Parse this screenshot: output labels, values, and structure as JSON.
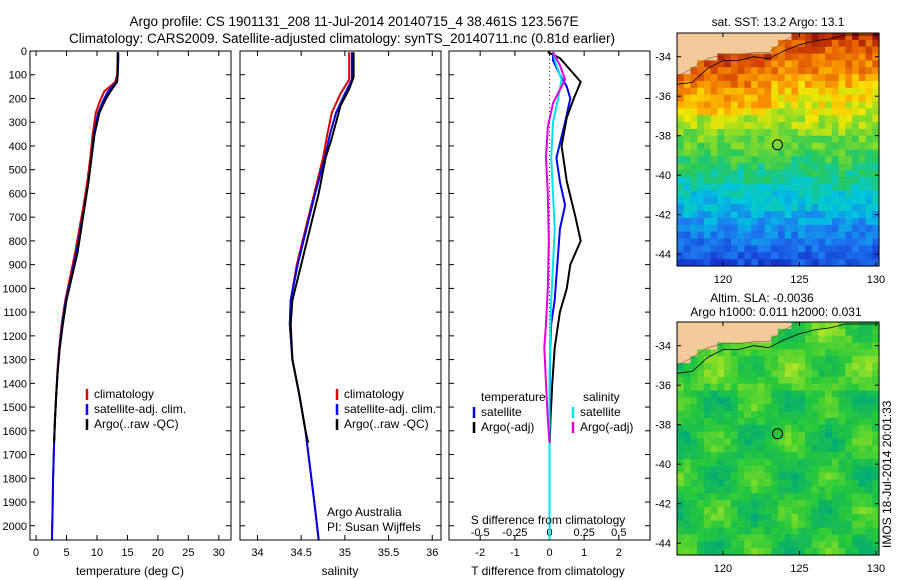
{
  "header": {
    "line1": "Argo profile: CS 1901131_208 11-Jul-2014 20140715_4 38.461S 123.567E",
    "line2": "Climatology: CARS2009. Satellite-adjusted climatology: synTS_20140711.nc (0.81d earlier)"
  },
  "footer_stamp": "IMOS 18-Jul-2014 20:01:33",
  "colors": {
    "climatology": "#dd0000",
    "satellite": "#0000ee",
    "argo": "#000000",
    "temp_satellite": "#0000ee",
    "sal_satellite": "#00e5e5",
    "sal_argo": "#e000e0",
    "land": "#f4c99a"
  },
  "chart_data": [
    {
      "id": "temperature",
      "type": "line",
      "xlabel": "temperature (deg C)",
      "xlim": [
        -1,
        32
      ],
      "xticks": [
        0,
        5,
        10,
        15,
        20,
        25,
        30
      ],
      "ylim": [
        2060,
        0
      ],
      "yticks": [
        0,
        100,
        200,
        300,
        400,
        500,
        600,
        700,
        800,
        900,
        1000,
        1100,
        1200,
        1300,
        1400,
        1500,
        1600,
        1700,
        1800,
        1900,
        2000
      ],
      "legend": [
        "climatology",
        "satellite-adj. clim.",
        "Argo(..raw -QC)"
      ],
      "series": [
        {
          "name": "climatology",
          "points": [
            [
              13.4,
              5
            ],
            [
              13.4,
              40
            ],
            [
              13.3,
              100
            ],
            [
              13.0,
              130
            ],
            [
              11.2,
              170
            ],
            [
              10.5,
              210
            ],
            [
              9.8,
              260
            ],
            [
              9.3,
              350
            ],
            [
              8.9,
              450
            ],
            [
              8.4,
              550
            ],
            [
              7.8,
              650
            ],
            [
              7.1,
              750
            ],
            [
              6.4,
              850
            ],
            [
              5.6,
              950
            ],
            [
              4.8,
              1050
            ],
            [
              4.2,
              1150
            ],
            [
              3.8,
              1250
            ],
            [
              3.5,
              1350
            ],
            [
              3.3,
              1450
            ],
            [
              3.1,
              1550
            ],
            [
              2.95,
              1650
            ],
            [
              2.8,
              1800
            ],
            [
              2.7,
              1950
            ],
            [
              2.6,
              2060
            ]
          ]
        },
        {
          "name": "satellite-adj. clim.",
          "points": [
            [
              13.5,
              5
            ],
            [
              13.5,
              40
            ],
            [
              13.4,
              100
            ],
            [
              13.2,
              130
            ],
            [
              11.8,
              170
            ],
            [
              11.0,
              210
            ],
            [
              10.2,
              260
            ],
            [
              9.5,
              350
            ],
            [
              9.1,
              450
            ],
            [
              8.6,
              550
            ],
            [
              8.0,
              650
            ],
            [
              7.3,
              750
            ],
            [
              6.6,
              850
            ],
            [
              5.8,
              950
            ],
            [
              4.9,
              1050
            ],
            [
              4.3,
              1150
            ],
            [
              3.85,
              1250
            ],
            [
              3.55,
              1350
            ],
            [
              3.3,
              1450
            ],
            [
              3.1,
              1550
            ],
            [
              2.95,
              1650
            ],
            [
              2.8,
              1800
            ],
            [
              2.7,
              1950
            ],
            [
              2.6,
              2060
            ]
          ]
        },
        {
          "name": "Argo(..raw -QC)",
          "points": [
            [
              13.4,
              5
            ],
            [
              13.4,
              40
            ],
            [
              13.4,
              100
            ],
            [
              13.3,
              130
            ],
            [
              12.2,
              170
            ],
            [
              11.3,
              210
            ],
            [
              10.4,
              260
            ],
            [
              9.6,
              350
            ],
            [
              9.1,
              450
            ],
            [
              8.6,
              550
            ],
            [
              8.0,
              650
            ],
            [
              7.4,
              750
            ],
            [
              6.8,
              850
            ],
            [
              5.9,
              950
            ],
            [
              5.0,
              1050
            ],
            [
              4.4,
              1150
            ],
            [
              3.9,
              1250
            ],
            [
              3.55,
              1350
            ],
            [
              3.3,
              1450
            ],
            [
              3.1,
              1550
            ],
            [
              2.95,
              1650
            ]
          ]
        }
      ]
    },
    {
      "id": "salinity",
      "type": "line",
      "xlabel": "salinity",
      "xlim": [
        33.8,
        36.1
      ],
      "xticks": [
        34,
        34.5,
        35,
        35.5,
        36
      ],
      "ylim": [
        2060,
        0
      ],
      "legend": [
        "climatology",
        "satellite-adj. clim.",
        "Argo(..raw -QC)"
      ],
      "annotations": [
        "Argo Australia",
        "PI: Susan Wijffels"
      ],
      "series": [
        {
          "name": "climatology",
          "points": [
            [
              35.05,
              5
            ],
            [
              35.05,
              50
            ],
            [
              35.05,
              120
            ],
            [
              34.95,
              180
            ],
            [
              34.85,
              260
            ],
            [
              34.8,
              350
            ],
            [
              34.75,
              450
            ],
            [
              34.65,
              600
            ],
            [
              34.55,
              750
            ],
            [
              34.45,
              900
            ],
            [
              34.38,
              1050
            ],
            [
              34.37,
              1150
            ],
            [
              34.4,
              1300
            ],
            [
              34.48,
              1450
            ],
            [
              34.55,
              1600
            ],
            [
              34.6,
              1750
            ],
            [
              34.65,
              1900
            ],
            [
              34.7,
              2060
            ]
          ]
        },
        {
          "name": "satellite-adj. clim.",
          "points": [
            [
              35.08,
              5
            ],
            [
              35.08,
              50
            ],
            [
              35.08,
              120
            ],
            [
              35.0,
              180
            ],
            [
              34.9,
              260
            ],
            [
              34.83,
              350
            ],
            [
              34.77,
              450
            ],
            [
              34.66,
              600
            ],
            [
              34.56,
              750
            ],
            [
              34.46,
              900
            ],
            [
              34.38,
              1050
            ],
            [
              34.37,
              1150
            ],
            [
              34.4,
              1300
            ],
            [
              34.48,
              1450
            ],
            [
              34.55,
              1600
            ],
            [
              34.6,
              1750
            ],
            [
              34.65,
              1900
            ],
            [
              34.7,
              2060
            ]
          ]
        },
        {
          "name": "Argo(..raw -QC)",
          "points": [
            [
              35.1,
              5
            ],
            [
              35.1,
              50
            ],
            [
              35.1,
              110
            ],
            [
              35.05,
              160
            ],
            [
              34.95,
              230
            ],
            [
              34.9,
              300
            ],
            [
              34.84,
              380
            ],
            [
              34.78,
              450
            ],
            [
              34.7,
              600
            ],
            [
              34.6,
              750
            ],
            [
              34.5,
              900
            ],
            [
              34.4,
              1050
            ],
            [
              34.38,
              1150
            ],
            [
              34.4,
              1300
            ],
            [
              34.48,
              1450
            ],
            [
              34.55,
              1600
            ],
            [
              34.58,
              1650
            ]
          ]
        }
      ]
    },
    {
      "id": "difference",
      "type": "line",
      "xlabel": "T difference from climatology",
      "xlabel_top": "S difference from climatology",
      "xlim": [
        -2.9,
        2.9
      ],
      "xticks": [
        -2,
        -1,
        0,
        1,
        2
      ],
      "top_tick_labels": [
        {
          "value": -2,
          "label": "-0.5"
        },
        {
          "value": -1,
          "label": "-0.25"
        },
        {
          "value": 0,
          "label": "0"
        },
        {
          "value": 1,
          "label": "0.25"
        },
        {
          "value": 2,
          "label": "0.5"
        }
      ],
      "ylim": [
        2060,
        0
      ],
      "legend_temperature": [
        "temperature",
        "satellite",
        "Argo(-adj)"
      ],
      "legend_salinity": [
        "salinity",
        "satellite",
        "Argo(-adj)"
      ],
      "series": [
        {
          "name": "temperature satellite",
          "points": [
            [
              0.1,
              5
            ],
            [
              0.1,
              40
            ],
            [
              0.3,
              100
            ],
            [
              0.5,
              150
            ],
            [
              0.6,
              200
            ],
            [
              0.45,
              300
            ],
            [
              0.2,
              450
            ],
            [
              0.3,
              550
            ],
            [
              0.45,
              650
            ],
            [
              0.3,
              750
            ],
            [
              0.25,
              850
            ],
            [
              0.2,
              950
            ],
            [
              0.15,
              1050
            ],
            [
              0.05,
              1150
            ],
            [
              0.02,
              1250
            ],
            [
              0.01,
              1400
            ],
            [
              0.0,
              1500
            ],
            [
              0.0,
              1700
            ],
            [
              0.0,
              2060
            ]
          ]
        },
        {
          "name": "temperature Argo(-adj)",
          "points": [
            [
              -0.05,
              5
            ],
            [
              0.3,
              30
            ],
            [
              0.6,
              80
            ],
            [
              0.9,
              130
            ],
            [
              0.7,
              200
            ],
            [
              0.5,
              280
            ],
            [
              0.35,
              400
            ],
            [
              0.5,
              550
            ],
            [
              0.75,
              700
            ],
            [
              0.9,
              800
            ],
            [
              0.6,
              900
            ],
            [
              0.5,
              1000
            ],
            [
              0.3,
              1100
            ],
            [
              0.15,
              1250
            ],
            [
              0.08,
              1400
            ],
            [
              0.03,
              1550
            ],
            [
              0.01,
              1650
            ]
          ]
        },
        {
          "name": "salinity satellite",
          "points": [
            [
              0.1,
              5
            ],
            [
              0.2,
              60
            ],
            [
              0.35,
              120
            ],
            [
              0.25,
              200
            ],
            [
              0.1,
              300
            ],
            [
              0.05,
              450
            ],
            [
              0.1,
              600
            ],
            [
              0.15,
              750
            ],
            [
              0.1,
              900
            ],
            [
              0.05,
              1050
            ],
            [
              0.02,
              1200
            ],
            [
              0.0,
              1400
            ],
            [
              0.0,
              2060
            ]
          ]
        },
        {
          "name": "salinity Argo(-adj)",
          "points": [
            [
              0.1,
              5
            ],
            [
              0.3,
              60
            ],
            [
              0.45,
              120
            ],
            [
              0.1,
              220
            ],
            [
              -0.05,
              320
            ],
            [
              -0.1,
              450
            ],
            [
              -0.05,
              600
            ],
            [
              -0.02,
              800
            ],
            [
              -0.05,
              1000
            ],
            [
              -0.1,
              1150
            ],
            [
              -0.15,
              1250
            ],
            [
              -0.1,
              1400
            ],
            [
              -0.05,
              1550
            ],
            [
              0.0,
              1650
            ]
          ]
        }
      ]
    },
    {
      "id": "sst_map",
      "type": "heatmap",
      "title": "sat. SST: 13.2 Argo: 13.1",
      "xlim": [
        117,
        130.2
      ],
      "xticks": [
        120,
        125,
        130
      ],
      "ylim": [
        -44.6,
        -32.8
      ],
      "yticks": [
        -34,
        -36,
        -38,
        -40,
        -42,
        -44
      ],
      "marker": [
        123.567,
        -38.461
      ],
      "coast": [
        [
          117,
          -35.0
        ],
        [
          118,
          -34.6
        ],
        [
          119,
          -34.1
        ],
        [
          120,
          -33.9
        ],
        [
          121,
          -33.9
        ],
        [
          122,
          -33.8
        ],
        [
          123,
          -33.8
        ],
        [
          124,
          -33.2
        ],
        [
          125,
          -32.8
        ]
      ],
      "contour": [
        [
          117,
          -35.4
        ],
        [
          118,
          -35.3
        ],
        [
          119,
          -34.6
        ],
        [
          120,
          -34.2
        ],
        [
          121,
          -34.2
        ],
        [
          122,
          -34.0
        ],
        [
          123,
          -34.1
        ],
        [
          124,
          -33.7
        ],
        [
          125,
          -33.4
        ],
        [
          126,
          -33.2
        ],
        [
          127,
          -33.1
        ],
        [
          128,
          -32.9
        ],
        [
          130.2,
          -32.9
        ]
      ]
    },
    {
      "id": "sla_map",
      "type": "heatmap",
      "title": "Altim. SLA: -0.0036",
      "subtitle": "Argo h1000: 0.011 h2000: 0.031",
      "xlim": [
        117,
        130.2
      ],
      "xticks": [
        120,
        125,
        130
      ],
      "ylim": [
        -44.6,
        -32.8
      ],
      "yticks": [
        -34,
        -36,
        -38,
        -40,
        -42,
        -44
      ],
      "marker": [
        123.567,
        -38.461
      ],
      "coast": [
        [
          117,
          -35.0
        ],
        [
          118,
          -34.6
        ],
        [
          119,
          -34.1
        ],
        [
          120,
          -33.9
        ],
        [
          121,
          -33.9
        ],
        [
          122,
          -33.8
        ],
        [
          123,
          -33.8
        ],
        [
          124,
          -33.2
        ],
        [
          125,
          -32.8
        ]
      ],
      "contour": [
        [
          117,
          -35.4
        ],
        [
          118,
          -35.3
        ],
        [
          119,
          -34.6
        ],
        [
          120,
          -34.2
        ],
        [
          121,
          -34.2
        ],
        [
          122,
          -34.0
        ],
        [
          123,
          -34.1
        ],
        [
          124,
          -33.7
        ],
        [
          125,
          -33.4
        ],
        [
          126,
          -33.2
        ],
        [
          127,
          -33.1
        ],
        [
          128,
          -32.9
        ],
        [
          130.2,
          -32.9
        ]
      ]
    }
  ]
}
